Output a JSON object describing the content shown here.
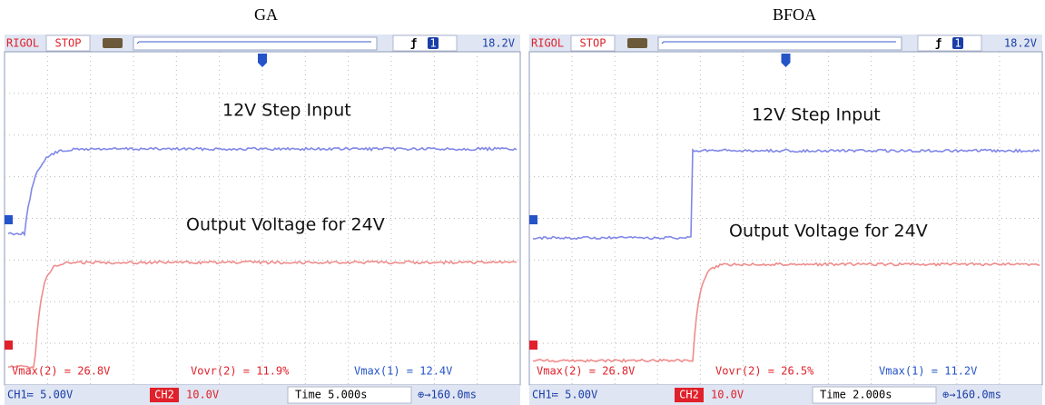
{
  "panels": [
    {
      "title": "GA",
      "header": {
        "brand": "RIGOL",
        "status": "STOP",
        "trigger_channel": "1",
        "trigger_level": "18.2V"
      },
      "labels": {
        "input": "12V Step Input",
        "output": "Output Voltage for 24V"
      },
      "measurements": [
        "Vmax(2) = 26.8V",
        "Vovr(2) = 11.9%",
        "Vmax(1) = 12.4V"
      ],
      "footer": {
        "ch1": "CH1≔ 5.00V",
        "ch2_badge": "CH2",
        "ch2": "10.0V",
        "time": "Time 5.000s",
        "offset": "⊕→160.0ms"
      }
    },
    {
      "title": "BFOA",
      "header": {
        "brand": "RIGOL",
        "status": "STOP",
        "trigger_channel": "1",
        "trigger_level": "18.2V"
      },
      "labels": {
        "input": "12V Step Input",
        "output": "Output Voltage for 24V"
      },
      "measurements": [
        "Vmax(2) = 26.8V",
        "Vovr(2) = 26.5%",
        "Vmax(1) = 11.2V"
      ],
      "footer": {
        "ch1": "CH1≔ 5.00V",
        "ch2_badge": "CH2",
        "ch2": "10.0V",
        "time": "Time 2.000s",
        "offset": "⊕→160.0ms"
      }
    }
  ]
}
